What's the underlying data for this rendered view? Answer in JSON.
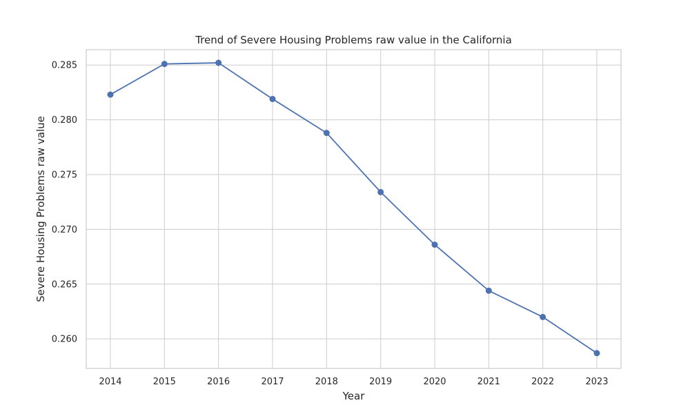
{
  "chart_data": {
    "type": "line",
    "title": "Trend of Severe Housing Problems raw value in the California",
    "xlabel": "Year",
    "ylabel": "Severe Housing Problems raw value",
    "categories": [
      "2014",
      "2015",
      "2016",
      "2017",
      "2018",
      "2019",
      "2020",
      "2021",
      "2022",
      "2023"
    ],
    "series": [
      {
        "values": [
          0.2823,
          0.2851,
          0.2852,
          0.2819,
          0.2788,
          0.2734,
          0.2686,
          0.2644,
          0.262,
          0.2587
        ]
      }
    ],
    "ylim": [
      0.2573,
      0.2864
    ],
    "yticks": [
      "0.260",
      "0.265",
      "0.270",
      "0.275",
      "0.280",
      "0.285"
    ],
    "grid": true,
    "marker": "circle",
    "line_color": "#4c72b0"
  }
}
